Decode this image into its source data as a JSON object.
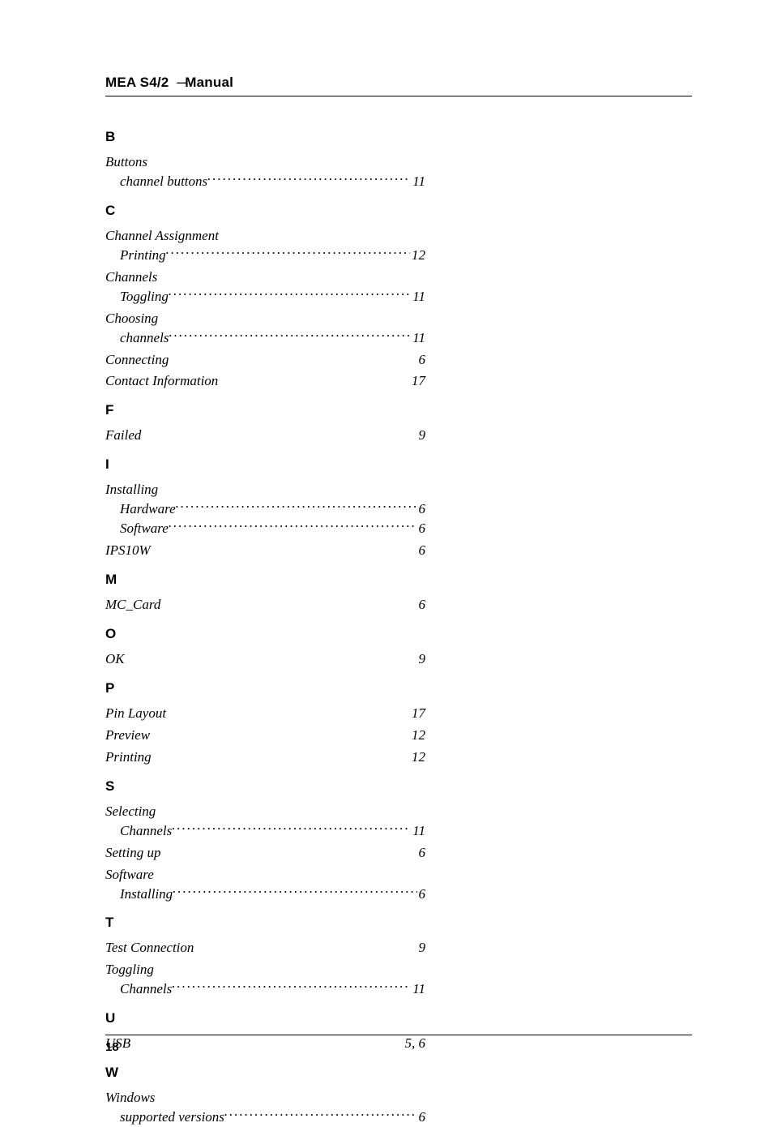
{
  "header": {
    "product": "MEA S4/2",
    "title": "Manual"
  },
  "footer": {
    "page_number": "18"
  },
  "index": [
    {
      "letter": "B",
      "entries": [
        {
          "label": "Buttons",
          "sub": [
            {
              "label": "channel buttons",
              "page": "11",
              "dots": true
            }
          ]
        }
      ]
    },
    {
      "letter": "C",
      "entries": [
        {
          "label": "Channel Assignment",
          "sub": [
            {
              "label": "Printing",
              "page": "12",
              "dots": true
            }
          ]
        },
        {
          "label": "Channels",
          "sub": [
            {
              "label": "Toggling",
              "page": "11",
              "dots": true
            }
          ]
        },
        {
          "label": "Choosing",
          "sub": [
            {
              "label": "channels",
              "page": "11",
              "dots": true
            }
          ]
        },
        {
          "label": "Connecting",
          "page": "6"
        },
        {
          "label": "Contact Information",
          "page": "17"
        }
      ]
    },
    {
      "letter": "F",
      "entries": [
        {
          "label": "Failed",
          "page": "9"
        }
      ]
    },
    {
      "letter": "I",
      "entries": [
        {
          "label": "Installing",
          "sub": [
            {
              "label": "Hardware",
              "page": "6",
              "dots": true
            },
            {
              "label": "Software",
              "page": "6",
              "dots": true
            }
          ]
        },
        {
          "label": "IPS10W",
          "page": "6"
        }
      ]
    },
    {
      "letter": "M",
      "entries": [
        {
          "label": "MC_Card",
          "page": "6"
        }
      ]
    },
    {
      "letter": "O",
      "entries": [
        {
          "label": "OK",
          "page": "9"
        }
      ]
    },
    {
      "letter": "P",
      "entries": [
        {
          "label": "Pin Layout",
          "page": "17"
        },
        {
          "label": "Preview",
          "page": "12"
        },
        {
          "label": "Printing",
          "page": "12"
        }
      ]
    },
    {
      "letter": "S",
      "entries": [
        {
          "label": "Selecting",
          "sub": [
            {
              "label": "Channels",
              "page": "11",
              "dots": true
            }
          ]
        },
        {
          "label": "Setting up",
          "page": "6"
        },
        {
          "label": "Software",
          "sub": [
            {
              "label": "Installing",
              "page": "6",
              "dots": true
            }
          ]
        }
      ]
    },
    {
      "letter": "T",
      "entries": [
        {
          "label": "Test Connection",
          "page": "9"
        },
        {
          "label": "Toggling",
          "sub": [
            {
              "label": "Channels",
              "page": "11",
              "dots": true
            }
          ]
        }
      ]
    },
    {
      "letter": "U",
      "entries": [
        {
          "label": "USB",
          "page": "5, 6"
        }
      ]
    },
    {
      "letter": "W",
      "entries": [
        {
          "label": "Windows",
          "sub": [
            {
              "label": "supported versions",
              "page": "6",
              "dots": true
            }
          ]
        }
      ]
    }
  ]
}
